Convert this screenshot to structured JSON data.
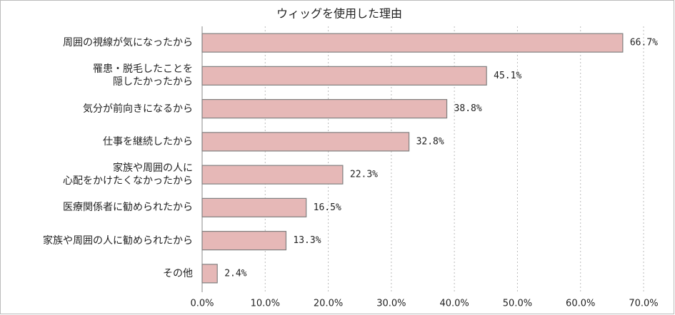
{
  "chart_data": {
    "type": "bar",
    "orientation": "horizontal",
    "title": "ウィッグを使用した理由",
    "categories": [
      "周囲の視線が気になったから",
      "罹患・脱毛したことを\n隠したかったから",
      "気分が前向きになるから",
      "仕事を継続したから",
      "家族や周囲の人に\n心配をかけたくなかったから",
      "医療関係者に勧められたから",
      "家族や周囲の人に勧められたから",
      "その他"
    ],
    "values": [
      66.7,
      45.1,
      38.8,
      32.8,
      22.3,
      16.5,
      13.3,
      2.4
    ],
    "value_labels": [
      "66.7%",
      "45.1%",
      "38.8%",
      "32.8%",
      "22.3%",
      "16.5%",
      "13.3%",
      "2.4%"
    ],
    "color": "#e6b8b7",
    "xlim": [
      0,
      70
    ],
    "xticks": [
      {
        "value": 0,
        "label": "0.0%"
      },
      {
        "value": 10,
        "label": "10.0%"
      },
      {
        "value": 20,
        "label": "20.0%"
      },
      {
        "value": 30,
        "label": "30.0%"
      },
      {
        "value": 40,
        "label": "40.0%"
      },
      {
        "value": 50,
        "label": "50.0%"
      },
      {
        "value": 60,
        "label": "60.0%"
      },
      {
        "value": 70,
        "label": "70.0%"
      }
    ],
    "grid": true
  }
}
